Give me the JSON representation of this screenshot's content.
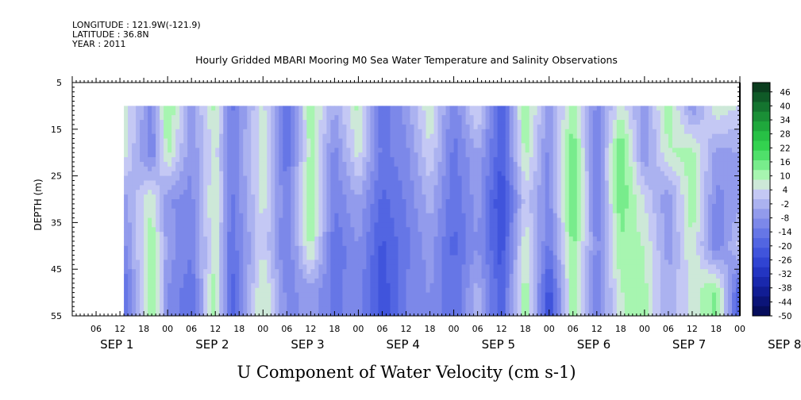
{
  "header": {
    "longitude": "LONGITUDE : 121.9W(-121.9)",
    "latitude": "LATITUDE : 36.8N",
    "year": "YEAR : 2011",
    "title": "Hourly Gridded MBARI Mooring M0 Sea Water Temperature and Salinity Observations"
  },
  "chart_data": {
    "type": "heatmap",
    "title": "Hourly Gridded MBARI Mooring M0 Sea Water Temperature and Salinity Observations",
    "xlabel": "U Component of Water Velocity (cm s-1)",
    "ylabel": "DEPTH (m)",
    "x_range_hours": [
      0,
      168
    ],
    "y_range_depth_m": [
      5,
      55
    ],
    "data_depth_range_m": [
      10,
      55
    ],
    "y_inverted": true,
    "y_ticks": [
      "5",
      "15",
      "25",
      "35",
      "45",
      "55"
    ],
    "x_hour_ticks": [
      "06",
      "12",
      "18",
      "00",
      "06",
      "12",
      "18",
      "00",
      "06",
      "12",
      "18",
      "00",
      "06",
      "12",
      "18",
      "00",
      "06",
      "12",
      "18",
      "00",
      "06",
      "12",
      "18",
      "00",
      "06",
      "12",
      "18",
      "00"
    ],
    "x_day_labels": [
      "SEP 1",
      "SEP 2",
      "SEP 3",
      "SEP 4",
      "SEP 5",
      "SEP 6",
      "SEP 7",
      "SEP 8"
    ],
    "colorbar": {
      "min": -50,
      "max": 50,
      "labels": [
        "46",
        "40",
        "34",
        "28",
        "22",
        "16",
        "10",
        "4",
        "-2",
        "-8",
        "-14",
        "-20",
        "-26",
        "-32",
        "-38",
        "-44",
        "-50"
      ],
      "colors": [
        "#0b3d1e",
        "#0f5a27",
        "#14742f",
        "#1a8f36",
        "#1fa83c",
        "#27c045",
        "#33d24f",
        "#4fe06a",
        "#78ec8c",
        "#a7f5b0",
        "#cde8d8",
        "#c4c8f4",
        "#abb2f0",
        "#929bec",
        "#7c88e9",
        "#6676e6",
        "#5265e2",
        "#4054dc",
        "#3044d2",
        "#2335c2",
        "#1928ad",
        "#111d94",
        "#0b1478",
        "#060d5c"
      ]
    },
    "series": [
      {
        "depth_bands_m": [
          10,
          20,
          30,
          40,
          50
        ],
        "hours": [
          13,
          20,
          24,
          30,
          36,
          40,
          48,
          54,
          60,
          66,
          72,
          78,
          84,
          90,
          96,
          102,
          108,
          114,
          120,
          126,
          132,
          138,
          144,
          150,
          156,
          162,
          168
        ],
        "u_cm_s": [
          [
            8,
            -10,
            14,
            -6,
            10,
            -14,
            6,
            -18,
            12,
            -4,
            10,
            -16,
            -6,
            8,
            -12,
            6,
            -22,
            14,
            -8,
            12,
            -10,
            6,
            -6,
            12,
            -8,
            8,
            4
          ],
          [
            6,
            -12,
            10,
            -8,
            6,
            -12,
            8,
            -16,
            10,
            -10,
            6,
            -14,
            -10,
            4,
            -14,
            -4,
            -20,
            10,
            -10,
            16,
            -12,
            18,
            -8,
            8,
            10,
            -6,
            -4
          ],
          [
            -6,
            8,
            -8,
            -10,
            10,
            -14,
            6,
            -12,
            14,
            -12,
            -4,
            -18,
            -12,
            -2,
            -16,
            -6,
            -26,
            2,
            -10,
            18,
            -12,
            16,
            4,
            -8,
            12,
            -10,
            -6
          ],
          [
            -10,
            12,
            -6,
            -12,
            8,
            -16,
            4,
            -14,
            10,
            -16,
            -8,
            -22,
            -14,
            -6,
            -18,
            -8,
            -24,
            8,
            -14,
            14,
            -10,
            12,
            8,
            -6,
            8,
            -12,
            2
          ],
          [
            -18,
            14,
            -8,
            -16,
            12,
            -20,
            10,
            -10,
            -6,
            -14,
            -10,
            -24,
            -12,
            -8,
            -16,
            -2,
            -20,
            12,
            -24,
            12,
            -12,
            8,
            10,
            -4,
            6,
            14,
            -22
          ]
        ]
      }
    ]
  }
}
